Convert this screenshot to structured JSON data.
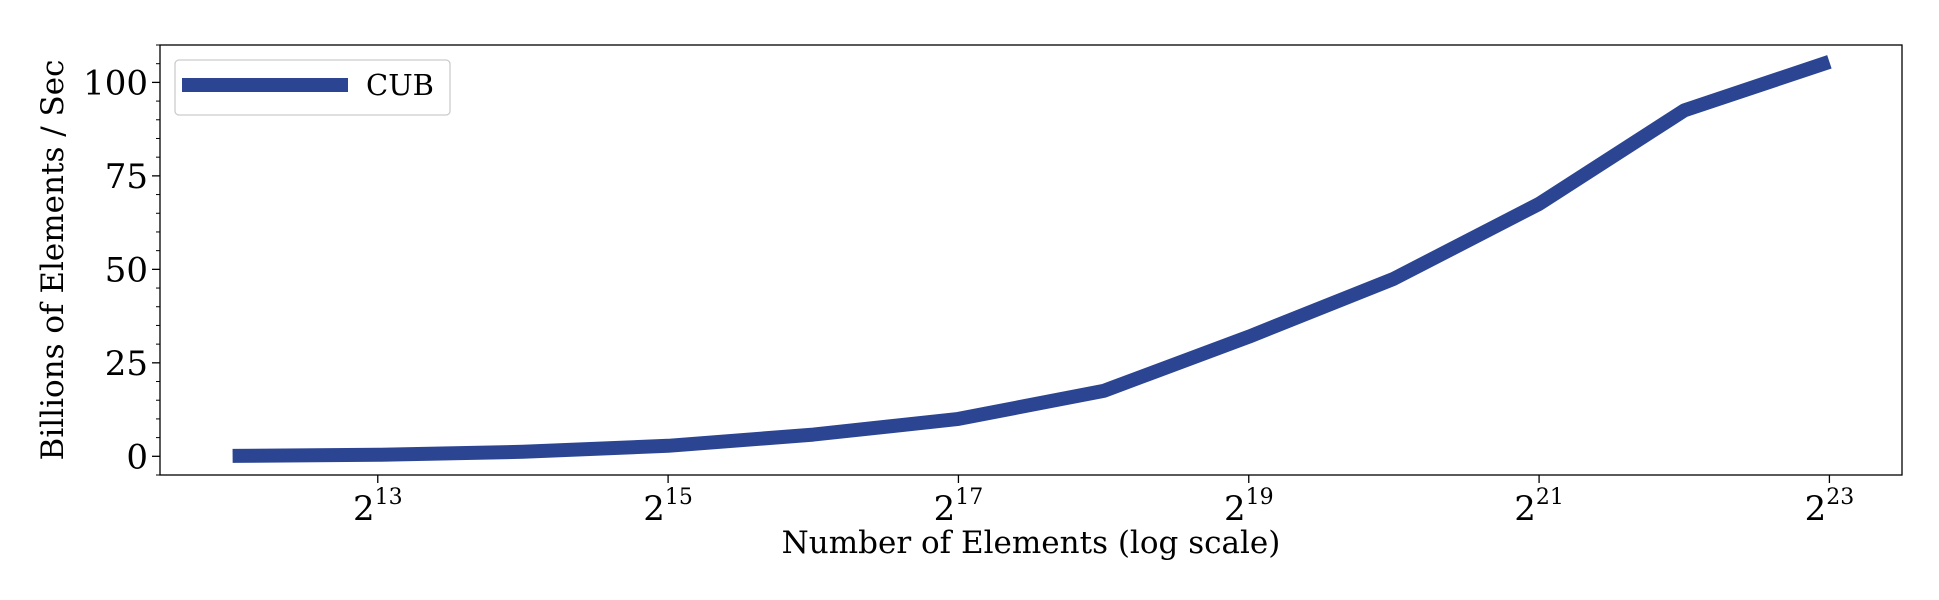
{
  "chart_data": {
    "type": "line",
    "title": "",
    "xlabel": "Number of Elements (log scale)",
    "ylabel": "Billions of Elements / Sec",
    "x_scale": "log2",
    "x": [
      4096,
      8192,
      16384,
      32768,
      65536,
      131072,
      262144,
      524288,
      1048576,
      2097152,
      4194304,
      8388608
    ],
    "x_ticks": [
      {
        "base": "2",
        "exp": "13",
        "value": 8192
      },
      {
        "base": "2",
        "exp": "15",
        "value": 32768
      },
      {
        "base": "2",
        "exp": "17",
        "value": 131072
      },
      {
        "base": "2",
        "exp": "19",
        "value": 524288
      },
      {
        "base": "2",
        "exp": "21",
        "value": 2097152
      },
      {
        "base": "2",
        "exp": "23",
        "value": 8388608
      }
    ],
    "xlim": [
      2896,
      11863283
    ],
    "ylim": [
      -5,
      110
    ],
    "y_ticks": [
      {
        "label": "0",
        "value": 0
      },
      {
        "label": "25",
        "value": 25
      },
      {
        "label": "50",
        "value": 50
      },
      {
        "label": "75",
        "value": 75
      },
      {
        "label": "100",
        "value": 100
      }
    ],
    "grid": false,
    "legend_position": "top-left",
    "series": [
      {
        "name": "CUB",
        "color": "#2c4593",
        "values": [
          0.1,
          0.4,
          1.2,
          2.8,
          5.8,
          10.0,
          17.5,
          32.0,
          47.5,
          67.5,
          92.5,
          105.5
        ]
      }
    ]
  }
}
